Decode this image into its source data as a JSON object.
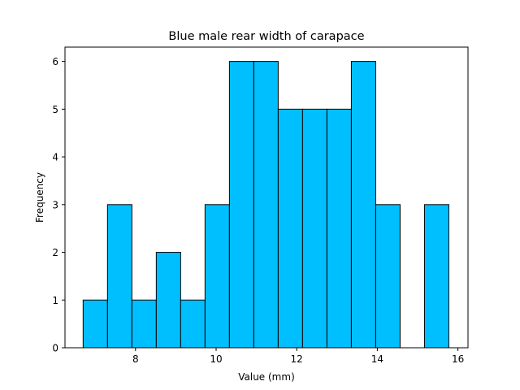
{
  "chart_data": {
    "type": "bar",
    "title": "Blue male rear width of carapace",
    "xlabel": "Value (mm)",
    "ylabel": "Frequency",
    "bar_color": "#00bfff",
    "edge_color": "#000000",
    "xlim": [
      6.25,
      16.25
    ],
    "ylim": [
      0,
      6.3
    ],
    "x_ticks": [
      8,
      10,
      12,
      14,
      16
    ],
    "y_ticks": [
      0,
      1,
      2,
      3,
      4,
      5,
      6
    ],
    "bin_edges": [
      6.7,
      7.305,
      7.91,
      8.515,
      9.12,
      9.725,
      10.33,
      10.935,
      11.54,
      12.145,
      12.75,
      13.355,
      13.96,
      14.565,
      15.17,
      15.775
    ],
    "values": [
      1,
      3,
      1,
      2,
      1,
      3,
      6,
      6,
      5,
      5,
      5,
      6,
      3,
      0,
      3
    ]
  }
}
